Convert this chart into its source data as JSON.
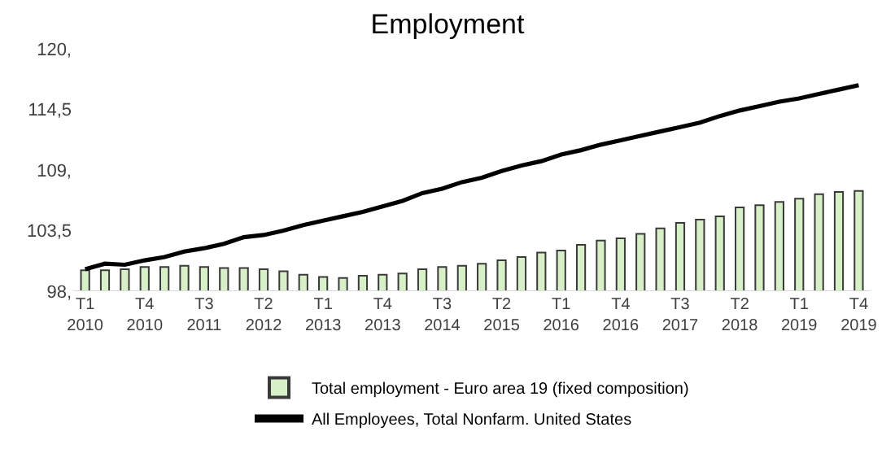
{
  "chart_data": {
    "type": "bar",
    "title": "Employment",
    "categories": [
      "T1\n2010",
      null,
      null,
      "T4\n2010",
      null,
      null,
      "T3\n2011",
      null,
      null,
      "T2\n2012",
      null,
      null,
      "T1\n2013",
      null,
      null,
      "T4\n2013",
      null,
      null,
      "T3\n2014",
      null,
      null,
      "T2\n2015",
      null,
      null,
      "T1\n2016",
      null,
      null,
      "T4\n2016",
      null,
      null,
      "T3\n2017",
      null,
      null,
      "T2\n2018",
      null,
      null,
      "T1\n2019",
      null,
      null,
      "T4\n2019"
    ],
    "series": [
      {
        "name": "Total employment - Euro area 19 (fixed composition)",
        "color": "#d8f0c8",
        "values": [
          99.9,
          99.9,
          100.0,
          100.2,
          100.2,
          100.3,
          100.2,
          100.1,
          100.1,
          100.0,
          99.8,
          99.5,
          99.3,
          99.2,
          99.4,
          99.5,
          99.6,
          100.0,
          100.2,
          100.3,
          100.5,
          100.8,
          101.1,
          101.5,
          101.7,
          102.2,
          102.6,
          102.8,
          103.2,
          103.7,
          104.2,
          104.5,
          104.8,
          105.6,
          105.8,
          106.1,
          106.4,
          106.8,
          107.0,
          107.1
        ]
      },
      {
        "name": "All Employees, Total Nonfarm. United States",
        "type": "line",
        "color": "#000000",
        "values": [
          100.0,
          100.5,
          100.4,
          100.8,
          101.1,
          101.6,
          101.9,
          102.3,
          102.9,
          103.1,
          103.5,
          104.0,
          104.4,
          104.8,
          105.2,
          105.7,
          106.2,
          106.9,
          107.3,
          107.9,
          108.3,
          108.9,
          109.4,
          109.8,
          110.4,
          110.8,
          111.3,
          111.7,
          112.1,
          112.5,
          112.9,
          113.3,
          113.9,
          114.4,
          114.8,
          115.2,
          115.5,
          115.9,
          116.3,
          116.7
        ]
      }
    ],
    "ylim": [
      98,
      120
    ],
    "yticks": [
      {
        "value": 98,
        "label": "98,"
      },
      {
        "value": 103.5,
        "label": "103,5"
      },
      {
        "value": 109,
        "label": "109,"
      },
      {
        "value": 114.5,
        "label": "114,5"
      },
      {
        "value": 120,
        "label": "120,"
      }
    ],
    "grid": false,
    "legend": "bottom",
    "marker": "none",
    "line_style": "solid"
  }
}
